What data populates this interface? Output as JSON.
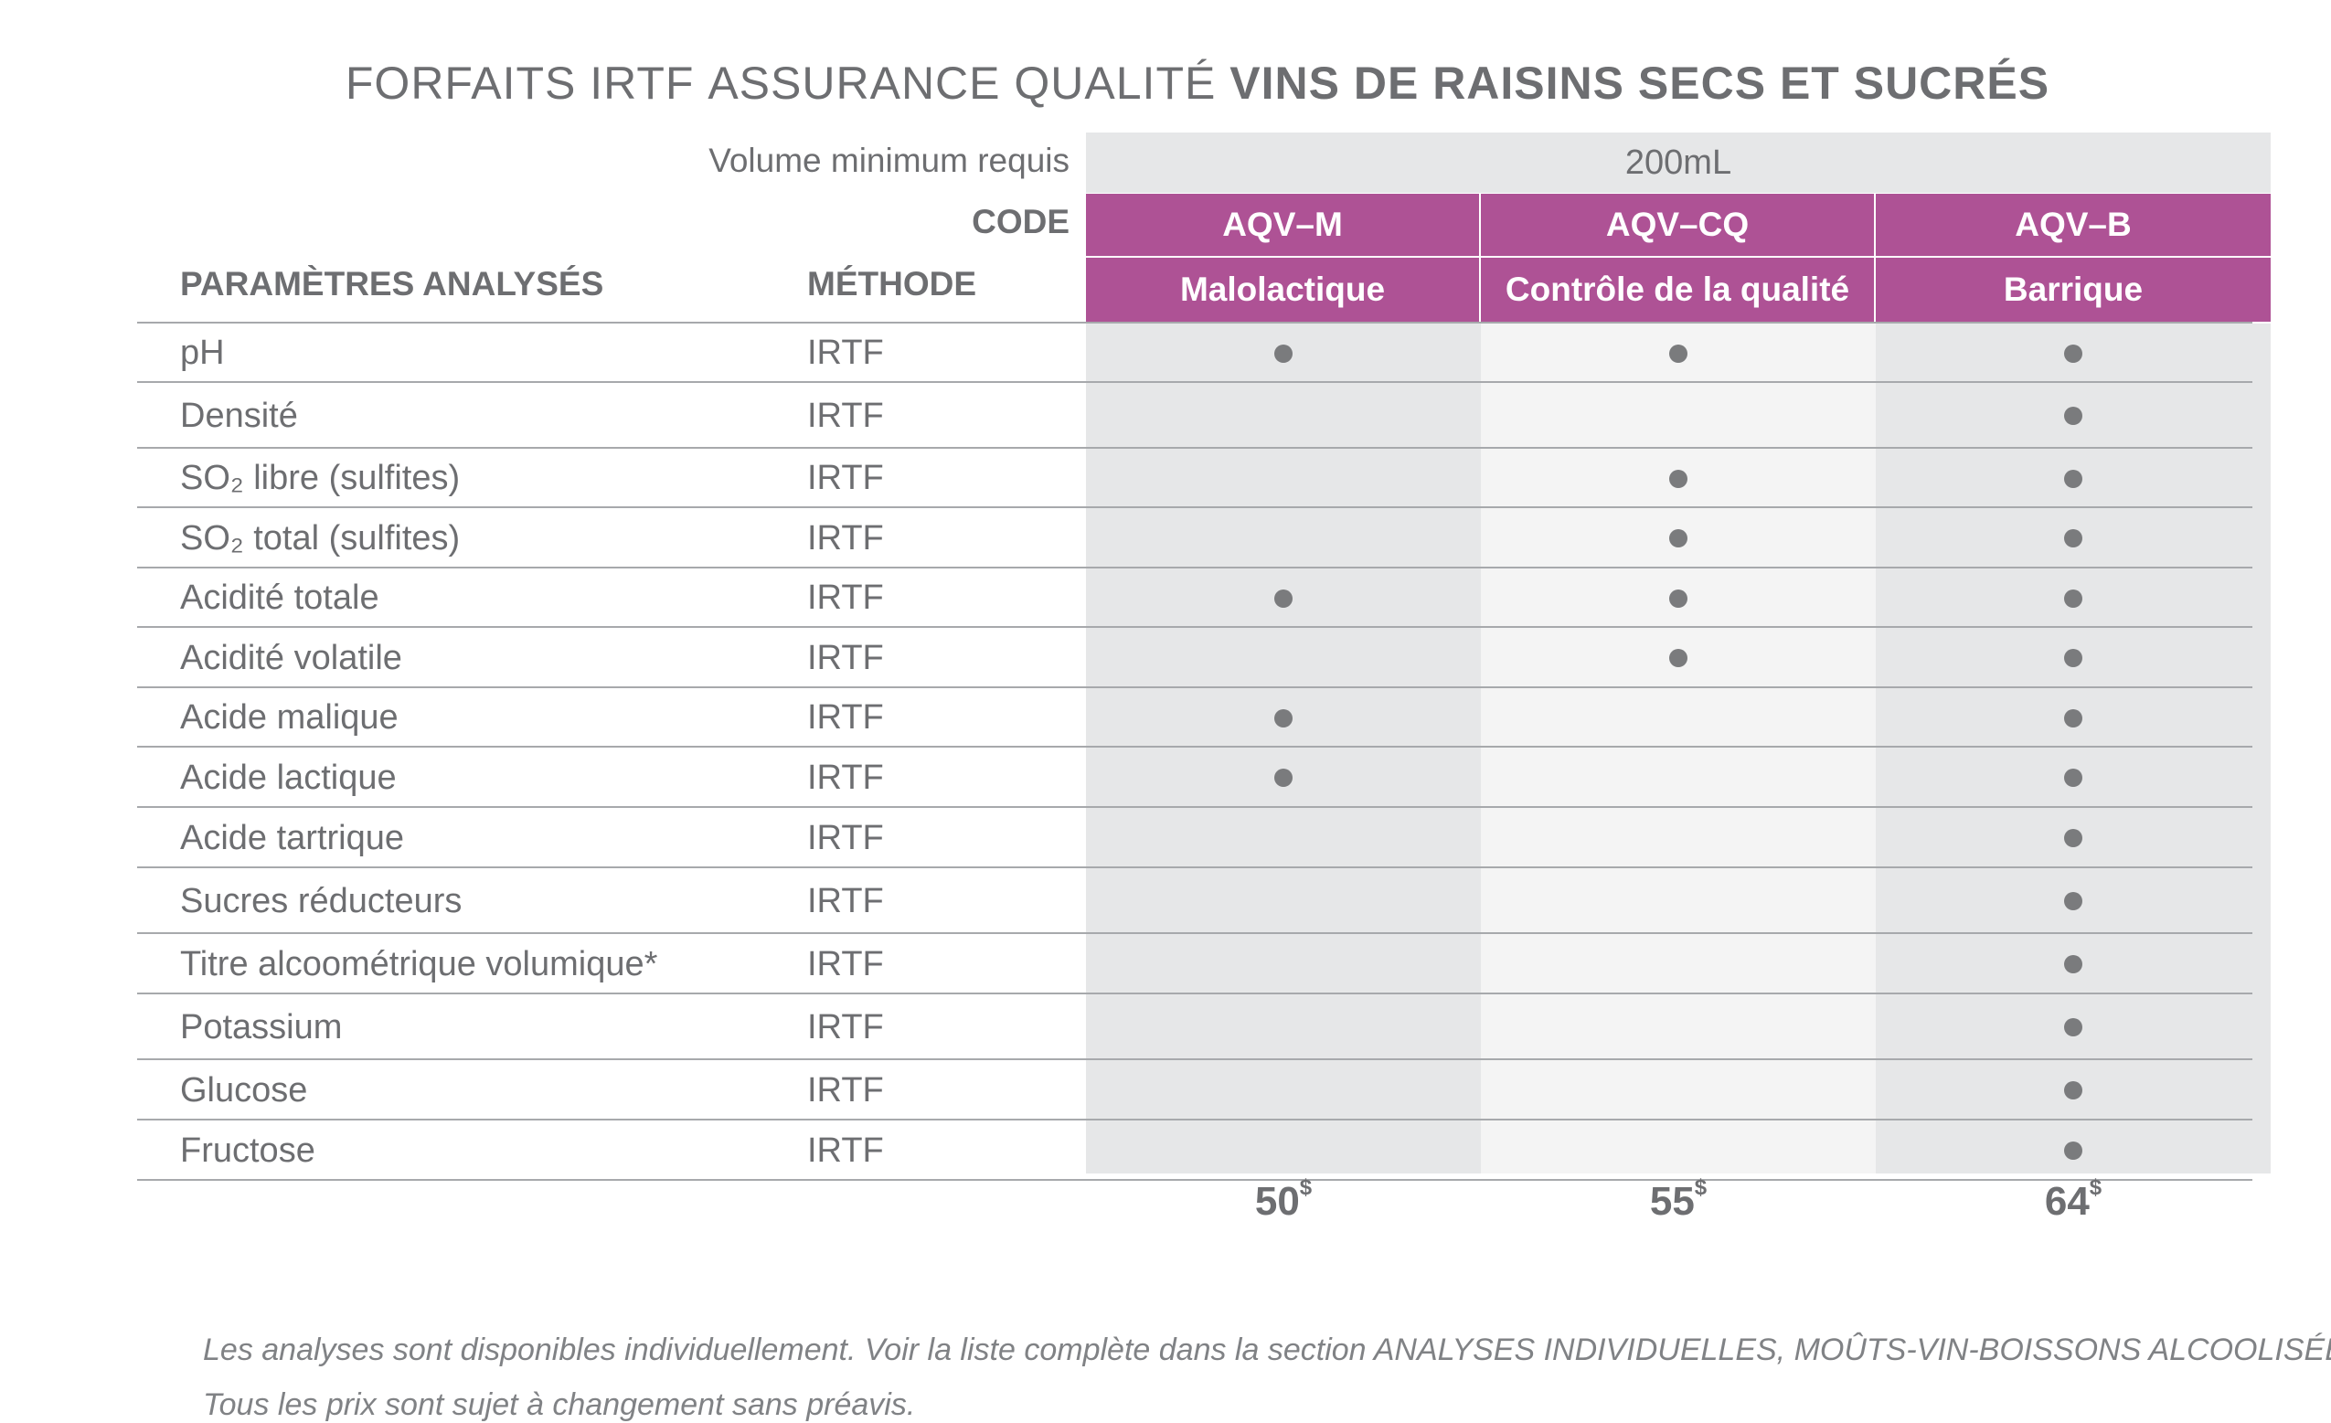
{
  "title": {
    "part1": "FORFAITS IRTF",
    "part2": "ASSURANCE QUALITÉ",
    "part3": "VINS DE RAISINS SECS ET SUCRÉS"
  },
  "volume": {
    "label": "Volume minimum requis",
    "value": "200mL"
  },
  "code_label": "CODE",
  "headers": {
    "parameters": "PARAMÈTRES ANALYSÉS",
    "method": "MÉTHODE"
  },
  "packages": [
    {
      "code": "AQV–M",
      "name": "Malolactique",
      "price": "50",
      "currency": "$"
    },
    {
      "code": "AQV–CQ",
      "name": "Contrôle de la qualité",
      "price": "55",
      "currency": "$"
    },
    {
      "code": "AQV–B",
      "name": "Barrique",
      "price": "64",
      "currency": "$"
    }
  ],
  "rows": [
    {
      "parameter": "pH",
      "method": "IRTF",
      "included": [
        true,
        true,
        true
      ]
    },
    {
      "parameter": "Densité",
      "method": "IRTF",
      "included": [
        false,
        false,
        true
      ]
    },
    {
      "parameter": "SO₂ libre (sulfites)",
      "method": "IRTF",
      "included": [
        false,
        true,
        true
      ]
    },
    {
      "parameter": "SO₂ total (sulfites)",
      "method": "IRTF",
      "included": [
        false,
        true,
        true
      ]
    },
    {
      "parameter": "Acidité totale",
      "method": "IRTF",
      "included": [
        true,
        true,
        true
      ]
    },
    {
      "parameter": "Acidité volatile",
      "method": "IRTF",
      "included": [
        false,
        true,
        true
      ]
    },
    {
      "parameter": "Acide malique",
      "method": "IRTF",
      "included": [
        true,
        false,
        true
      ]
    },
    {
      "parameter": "Acide lactique",
      "method": "IRTF",
      "included": [
        true,
        false,
        true
      ]
    },
    {
      "parameter": "Acide tartrique",
      "method": "IRTF",
      "included": [
        false,
        false,
        true
      ]
    },
    {
      "parameter": "Sucres réducteurs",
      "method": "IRTF",
      "included": [
        false,
        false,
        true
      ]
    },
    {
      "parameter": "Titre alcoométrique volumique*",
      "method": "IRTF",
      "included": [
        false,
        false,
        true
      ]
    },
    {
      "parameter": "Potassium",
      "method": "IRTF",
      "included": [
        false,
        false,
        true
      ]
    },
    {
      "parameter": "Glucose",
      "method": "IRTF",
      "included": [
        false,
        false,
        true
      ]
    },
    {
      "parameter": "Fructose",
      "method": "IRTF",
      "included": [
        false,
        false,
        true
      ]
    }
  ],
  "notes": [
    "Les analyses sont disponibles individuellement. Voir la liste complète dans la section ANALYSES INDIVIDUELLES, MOÛTS-VIN-BOISSONS ALCOOLISÉES.",
    "Tous les prix sont sujet à changement sans préavis."
  ],
  "colors": {
    "accent": "#ae5295",
    "column_shade_dark": "#e6e7e8",
    "column_shade_light": "#f4f4f4",
    "text": "#6d6e71"
  }
}
